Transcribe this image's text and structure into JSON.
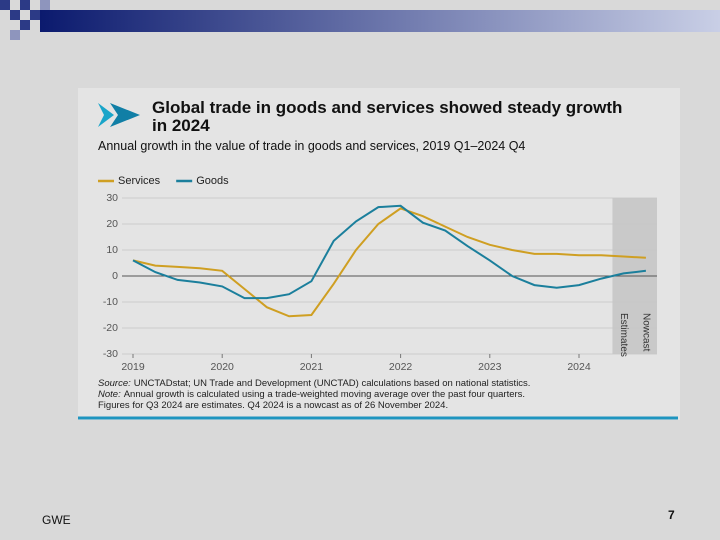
{
  "slide": {
    "footer_left": "GWE",
    "page_number": "7"
  },
  "chart_data": {
    "type": "line",
    "title": "Global trade in goods and services showed steady growth in 2024",
    "subtitle": "Annual growth in the value of trade in goods and services, 2019 Q1–2024 Q4",
    "categories": [
      "2019",
      null,
      null,
      null,
      "2020",
      null,
      null,
      null,
      "2021",
      null,
      null,
      null,
      "2022",
      null,
      null,
      null,
      "2023",
      null,
      null,
      null,
      "2024",
      null,
      null,
      null
    ],
    "series": [
      {
        "name": "Services",
        "color": "#cf9f22",
        "values": [
          6,
          4,
          3.5,
          3,
          2,
          -5,
          -12,
          -15.5,
          -15,
          -3,
          10,
          20,
          26,
          23,
          19,
          15,
          12,
          10,
          8.5,
          8.5,
          8,
          8,
          7.5,
          7
        ]
      },
      {
        "name": "Goods",
        "color": "#1b7f9c",
        "values": [
          6,
          1.5,
          -1.5,
          -2.5,
          -4,
          -8.5,
          -8.5,
          -7,
          -2,
          13.5,
          21,
          26.5,
          27,
          20.5,
          17.5,
          11.5,
          6,
          0,
          -3.5,
          -4.5,
          -3.5,
          -1,
          1,
          2
        ]
      }
    ],
    "ylim": [
      -30,
      30
    ],
    "yticks": [
      -30,
      -20,
      -10,
      0,
      10,
      20,
      30
    ],
    "grid": true,
    "annotations": [
      "Estimates",
      "Nowcast"
    ],
    "notes": [
      {
        "label": "Source:",
        "text": "UNCTADstat; UN Trade and Development (UNCTAD) calculations based on national statistics."
      },
      {
        "label": "Note:",
        "text": "Annual growth is calculated using a trade-weighted moving average over the past four quarters."
      },
      {
        "label": null,
        "text": "Figures for Q3 2024 are estimates. Q4 2024 is a nowcast as of 26 November 2024."
      }
    ]
  }
}
